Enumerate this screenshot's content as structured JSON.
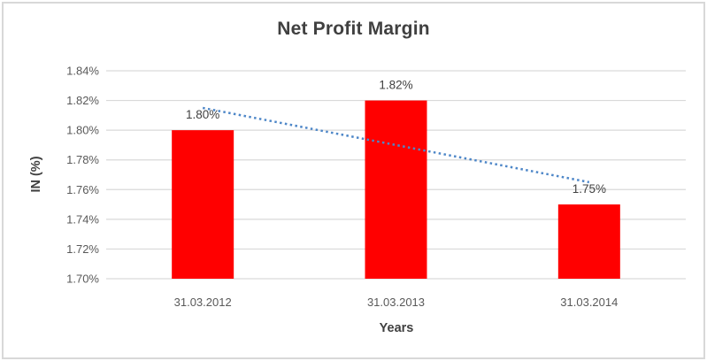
{
  "chart_data": {
    "type": "bar",
    "title": "Net Profit Margin",
    "xlabel": "Years",
    "ylabel": "IN (%)",
    "categories": [
      "31.03.2012",
      "31.03.2013",
      "31.03.2014"
    ],
    "series": [
      {
        "name": "Net Profit Margin",
        "values": [
          1.8,
          1.82,
          1.75
        ],
        "value_labels": [
          "1.80%",
          "1.82%",
          "1.75%"
        ]
      }
    ],
    "ylim": [
      1.7,
      1.84
    ],
    "ytick_step": 0.02,
    "ytick_labels": [
      "1.70%",
      "1.72%",
      "1.74%",
      "1.76%",
      "1.78%",
      "1.80%",
      "1.82%",
      "1.84%"
    ],
    "grid": true,
    "legend_position": "none",
    "trendline": {
      "type": "linear",
      "style": "dotted"
    },
    "colors": {
      "bar": "#FF0000",
      "trendline": "#4E87C8",
      "gridline": "#D9D9D9",
      "title_text": "#404040",
      "tick_text": "#595959",
      "data_label_text": "#404040",
      "frame_border": "#D8D8D8"
    }
  }
}
